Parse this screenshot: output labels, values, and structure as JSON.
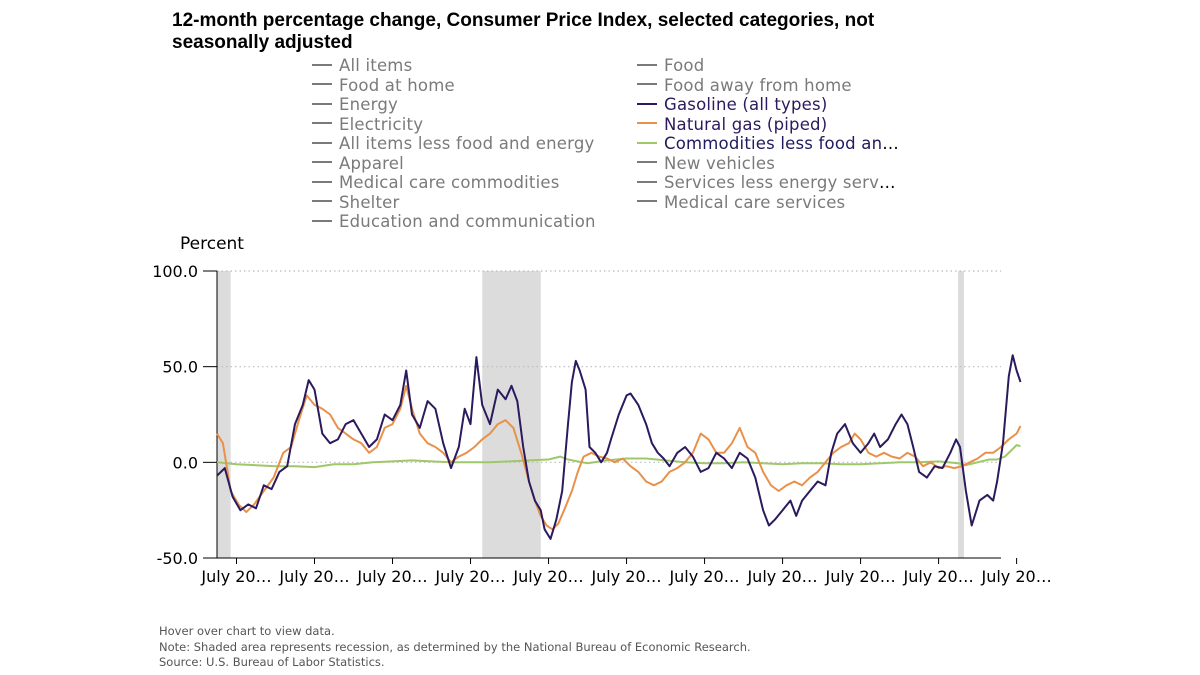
{
  "title": "12-month percentage change, Consumer Price Index, selected categories, not seasonally adjusted",
  "colors": {
    "gasoline": "#2b1a5e",
    "natural_gas": "#e8914a",
    "commodities": "#9ec86a",
    "inactive": "#7a7a7a",
    "recession": "#dcdcdc",
    "grid": "#bbbbbb"
  },
  "legend": [
    {
      "label": "All items",
      "active": false
    },
    {
      "label": "Food",
      "active": false
    },
    {
      "label": "Food at home",
      "active": false
    },
    {
      "label": "Food away from home",
      "active": false
    },
    {
      "label": "Energy",
      "active": false
    },
    {
      "label": "Gasoline (all types)",
      "active": true,
      "color": "#2b1a5e"
    },
    {
      "label": "Electricity",
      "active": false
    },
    {
      "label": "Natural gas (piped)",
      "active": true,
      "color": "#e8914a"
    },
    {
      "label": "All items less food and energy",
      "active": false
    },
    {
      "label": "Commodities less food and ener…",
      "active": true,
      "color": "#9ec86a"
    },
    {
      "label": "Apparel",
      "active": false
    },
    {
      "label": "New vehicles",
      "active": false
    },
    {
      "label": "Medical care commodities",
      "active": false
    },
    {
      "label": "Services less energy services",
      "active": false
    },
    {
      "label": "Shelter",
      "active": false
    },
    {
      "label": "Medical care services",
      "active": false
    },
    {
      "label": "Education and communication",
      "active": false
    }
  ],
  "notes": {
    "hover": "Hover over chart to view data.",
    "note": "Note: Shaded area represents recession, as determined by the National Bureau of Economic Research.",
    "source": "Source: U.S. Bureau of Labor Statistics."
  },
  "chart_data": {
    "type": "line",
    "title": "12-month percentage change, Consumer Price Index, selected categories, not seasonally adjusted",
    "ylabel": "Percent",
    "xlabel": "",
    "ylim": [
      -50,
      100
    ],
    "yticks": [
      -50,
      0,
      50,
      100
    ],
    "ytick_labels": [
      "-50.0",
      "0.0",
      "50.0",
      "100.0"
    ],
    "xlim": [
      2001.0,
      2021.1
    ],
    "xticks": [
      2001.5,
      2003.5,
      2005.5,
      2007.5,
      2009.5,
      2011.5,
      2013.5,
      2015.5,
      2017.5,
      2019.5,
      2021.5
    ],
    "xtick_labels": [
      "July 20…",
      "July 20…",
      "July 20…",
      "July 20…",
      "July 20…",
      "July 20…",
      "July 20…",
      "July 20…",
      "July 20…",
      "July 20…",
      "July 20…"
    ],
    "recessions": [
      [
        2001.0,
        2001.35
      ],
      [
        2007.8,
        2009.3
      ],
      [
        2020.0,
        2020.15
      ]
    ],
    "grid": true,
    "series": [
      {
        "name": "Gasoline (all types)",
        "color": "#2b1a5e",
        "points": [
          [
            2001.0,
            -7
          ],
          [
            2001.2,
            -3
          ],
          [
            2001.4,
            -18
          ],
          [
            2001.6,
            -25
          ],
          [
            2001.8,
            -22
          ],
          [
            2002.0,
            -24
          ],
          [
            2002.2,
            -12
          ],
          [
            2002.4,
            -14
          ],
          [
            2002.6,
            -5
          ],
          [
            2002.8,
            -2
          ],
          [
            2003.0,
            20
          ],
          [
            2003.2,
            30
          ],
          [
            2003.35,
            43
          ],
          [
            2003.5,
            38
          ],
          [
            2003.7,
            15
          ],
          [
            2003.9,
            10
          ],
          [
            2004.1,
            12
          ],
          [
            2004.3,
            20
          ],
          [
            2004.5,
            22
          ],
          [
            2004.7,
            15
          ],
          [
            2004.9,
            8
          ],
          [
            2005.1,
            12
          ],
          [
            2005.3,
            25
          ],
          [
            2005.5,
            22
          ],
          [
            2005.7,
            30
          ],
          [
            2005.85,
            48
          ],
          [
            2006.0,
            25
          ],
          [
            2006.2,
            18
          ],
          [
            2006.4,
            32
          ],
          [
            2006.6,
            28
          ],
          [
            2006.8,
            10
          ],
          [
            2007.0,
            -3
          ],
          [
            2007.2,
            8
          ],
          [
            2007.35,
            28
          ],
          [
            2007.5,
            20
          ],
          [
            2007.65,
            55
          ],
          [
            2007.8,
            30
          ],
          [
            2008.0,
            20
          ],
          [
            2008.2,
            38
          ],
          [
            2008.4,
            33
          ],
          [
            2008.55,
            40
          ],
          [
            2008.7,
            32
          ],
          [
            2008.85,
            8
          ],
          [
            2009.0,
            -10
          ],
          [
            2009.15,
            -20
          ],
          [
            2009.3,
            -25
          ],
          [
            2009.4,
            -35
          ],
          [
            2009.55,
            -40
          ],
          [
            2009.7,
            -30
          ],
          [
            2009.85,
            -15
          ],
          [
            2010.0,
            20
          ],
          [
            2010.1,
            42
          ],
          [
            2010.2,
            53
          ],
          [
            2010.3,
            48
          ],
          [
            2010.45,
            38
          ],
          [
            2010.55,
            8
          ],
          [
            2010.7,
            5
          ],
          [
            2010.85,
            0
          ],
          [
            2011.0,
            5
          ],
          [
            2011.1,
            12
          ],
          [
            2011.3,
            25
          ],
          [
            2011.5,
            35
          ],
          [
            2011.6,
            36
          ],
          [
            2011.8,
            30
          ],
          [
            2012.0,
            20
          ],
          [
            2012.15,
            10
          ],
          [
            2012.3,
            5
          ],
          [
            2012.45,
            2
          ],
          [
            2012.6,
            -2
          ],
          [
            2012.8,
            5
          ],
          [
            2013.0,
            8
          ],
          [
            2013.2,
            3
          ],
          [
            2013.4,
            -5
          ],
          [
            2013.6,
            -3
          ],
          [
            2013.8,
            5
          ],
          [
            2014.0,
            2
          ],
          [
            2014.2,
            -3
          ],
          [
            2014.4,
            5
          ],
          [
            2014.6,
            2
          ],
          [
            2014.8,
            -8
          ],
          [
            2015.0,
            -25
          ],
          [
            2015.15,
            -33
          ],
          [
            2015.3,
            -30
          ],
          [
            2015.5,
            -25
          ],
          [
            2015.7,
            -20
          ],
          [
            2015.85,
            -28
          ],
          [
            2016.0,
            -20
          ],
          [
            2016.2,
            -15
          ],
          [
            2016.4,
            -10
          ],
          [
            2016.6,
            -12
          ],
          [
            2016.75,
            5
          ],
          [
            2016.9,
            15
          ],
          [
            2017.1,
            20
          ],
          [
            2017.3,
            10
          ],
          [
            2017.5,
            5
          ],
          [
            2017.7,
            10
          ],
          [
            2017.85,
            15
          ],
          [
            2018.0,
            8
          ],
          [
            2018.2,
            12
          ],
          [
            2018.4,
            20
          ],
          [
            2018.55,
            25
          ],
          [
            2018.7,
            20
          ],
          [
            2018.85,
            8
          ],
          [
            2019.0,
            -5
          ],
          [
            2019.2,
            -8
          ],
          [
            2019.4,
            -2
          ],
          [
            2019.6,
            -3
          ],
          [
            2019.8,
            5
          ],
          [
            2019.95,
            12
          ],
          [
            2020.05,
            8
          ],
          [
            2020.2,
            -15
          ],
          [
            2020.35,
            -33
          ],
          [
            2020.55,
            -20
          ],
          [
            2020.75,
            -17
          ],
          [
            2020.9,
            -20
          ],
          [
            2021.0,
            -10
          ],
          [
            2021.15,
            10
          ],
          [
            2021.3,
            45
          ],
          [
            2021.4,
            56
          ],
          [
            2021.5,
            48
          ],
          [
            2021.6,
            42
          ]
        ]
      },
      {
        "name": "Natural gas (piped)",
        "color": "#e8914a",
        "points": [
          [
            2001.0,
            15
          ],
          [
            2001.15,
            10
          ],
          [
            2001.35,
            -15
          ],
          [
            2001.55,
            -22
          ],
          [
            2001.75,
            -26
          ],
          [
            2001.95,
            -22
          ],
          [
            2002.2,
            -15
          ],
          [
            2002.45,
            -8
          ],
          [
            2002.7,
            5
          ],
          [
            2002.9,
            8
          ],
          [
            2003.1,
            22
          ],
          [
            2003.3,
            35
          ],
          [
            2003.5,
            30
          ],
          [
            2003.7,
            28
          ],
          [
            2003.9,
            25
          ],
          [
            2004.1,
            18
          ],
          [
            2004.3,
            15
          ],
          [
            2004.5,
            12
          ],
          [
            2004.7,
            10
          ],
          [
            2004.9,
            5
          ],
          [
            2005.1,
            8
          ],
          [
            2005.3,
            18
          ],
          [
            2005.5,
            20
          ],
          [
            2005.7,
            28
          ],
          [
            2005.85,
            40
          ],
          [
            2006.0,
            28
          ],
          [
            2006.2,
            15
          ],
          [
            2006.4,
            10
          ],
          [
            2006.6,
            8
          ],
          [
            2006.8,
            5
          ],
          [
            2007.0,
            0
          ],
          [
            2007.2,
            3
          ],
          [
            2007.4,
            5
          ],
          [
            2007.6,
            8
          ],
          [
            2007.8,
            12
          ],
          [
            2008.0,
            15
          ],
          [
            2008.2,
            20
          ],
          [
            2008.4,
            22
          ],
          [
            2008.6,
            18
          ],
          [
            2008.8,
            5
          ],
          [
            2009.0,
            -10
          ],
          [
            2009.15,
            -20
          ],
          [
            2009.3,
            -28
          ],
          [
            2009.45,
            -33
          ],
          [
            2009.6,
            -35
          ],
          [
            2009.75,
            -32
          ],
          [
            2009.9,
            -25
          ],
          [
            2010.1,
            -15
          ],
          [
            2010.25,
            -5
          ],
          [
            2010.4,
            3
          ],
          [
            2010.6,
            5
          ],
          [
            2010.8,
            3
          ],
          [
            2011.0,
            2
          ],
          [
            2011.2,
            0
          ],
          [
            2011.4,
            2
          ],
          [
            2011.6,
            -2
          ],
          [
            2011.8,
            -5
          ],
          [
            2012.0,
            -10
          ],
          [
            2012.2,
            -12
          ],
          [
            2012.4,
            -10
          ],
          [
            2012.6,
            -5
          ],
          [
            2012.8,
            -3
          ],
          [
            2013.0,
            0
          ],
          [
            2013.2,
            5
          ],
          [
            2013.4,
            15
          ],
          [
            2013.6,
            12
          ],
          [
            2013.8,
            5
          ],
          [
            2014.0,
            5
          ],
          [
            2014.2,
            10
          ],
          [
            2014.4,
            18
          ],
          [
            2014.6,
            8
          ],
          [
            2014.8,
            5
          ],
          [
            2015.0,
            -5
          ],
          [
            2015.2,
            -12
          ],
          [
            2015.4,
            -15
          ],
          [
            2015.6,
            -12
          ],
          [
            2015.8,
            -10
          ],
          [
            2016.0,
            -12
          ],
          [
            2016.2,
            -8
          ],
          [
            2016.4,
            -5
          ],
          [
            2016.6,
            0
          ],
          [
            2016.8,
            5
          ],
          [
            2017.0,
            8
          ],
          [
            2017.2,
            10
          ],
          [
            2017.35,
            15
          ],
          [
            2017.5,
            12
          ],
          [
            2017.7,
            5
          ],
          [
            2017.9,
            3
          ],
          [
            2018.1,
            5
          ],
          [
            2018.3,
            3
          ],
          [
            2018.5,
            2
          ],
          [
            2018.7,
            5
          ],
          [
            2018.9,
            3
          ],
          [
            2019.1,
            -2
          ],
          [
            2019.3,
            0
          ],
          [
            2019.5,
            -3
          ],
          [
            2019.7,
            -2
          ],
          [
            2019.9,
            -3
          ],
          [
            2020.1,
            -2
          ],
          [
            2020.3,
            0
          ],
          [
            2020.5,
            2
          ],
          [
            2020.7,
            5
          ],
          [
            2020.9,
            5
          ],
          [
            2021.1,
            8
          ],
          [
            2021.3,
            12
          ],
          [
            2021.5,
            15
          ],
          [
            2021.6,
            19
          ]
        ]
      },
      {
        "name": "Commodities less food and energy commodities",
        "color": "#9ec86a",
        "points": [
          [
            2001.0,
            0
          ],
          [
            2001.5,
            -1
          ],
          [
            2002.0,
            -1.5
          ],
          [
            2002.5,
            -2
          ],
          [
            2003.0,
            -2
          ],
          [
            2003.5,
            -2.5
          ],
          [
            2004.0,
            -1
          ],
          [
            2004.5,
            -1
          ],
          [
            2005.0,
            0
          ],
          [
            2005.5,
            0.5
          ],
          [
            2006.0,
            1
          ],
          [
            2006.5,
            0.5
          ],
          [
            2007.0,
            0
          ],
          [
            2007.5,
            0
          ],
          [
            2008.0,
            0
          ],
          [
            2008.5,
            0.5
          ],
          [
            2009.0,
            1
          ],
          [
            2009.5,
            1.5
          ],
          [
            2009.8,
            3
          ],
          [
            2010.0,
            1.5
          ],
          [
            2010.5,
            -0.5
          ],
          [
            2011.0,
            1
          ],
          [
            2011.5,
            2
          ],
          [
            2012.0,
            2
          ],
          [
            2012.5,
            1
          ],
          [
            2013.0,
            0
          ],
          [
            2013.5,
            -0.5
          ],
          [
            2014.0,
            -0.5
          ],
          [
            2014.5,
            0
          ],
          [
            2015.0,
            -0.5
          ],
          [
            2015.5,
            -1
          ],
          [
            2016.0,
            -0.5
          ],
          [
            2016.5,
            -0.5
          ],
          [
            2017.0,
            -1
          ],
          [
            2017.5,
            -1
          ],
          [
            2018.0,
            -0.5
          ],
          [
            2018.5,
            0
          ],
          [
            2019.0,
            0
          ],
          [
            2019.5,
            0.5
          ],
          [
            2020.0,
            -0.5
          ],
          [
            2020.2,
            -1.5
          ],
          [
            2020.5,
            0
          ],
          [
            2020.8,
            1.5
          ],
          [
            2021.0,
            1.5
          ],
          [
            2021.2,
            3
          ],
          [
            2021.35,
            6
          ],
          [
            2021.5,
            9
          ],
          [
            2021.6,
            8.5
          ]
        ]
      }
    ]
  }
}
